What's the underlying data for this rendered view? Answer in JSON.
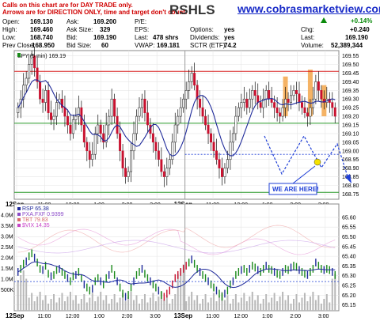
{
  "notices": {
    "line1": "Calls on this chart are for DAY TRADE only.",
    "line2": "Arrows are for DIRECTION ONLY, time and target don't count."
  },
  "site": "www.cobrasmarketview.com",
  "ticker": "RSHLS",
  "quote": {
    "open_label": "Open:",
    "open": "169.130",
    "high_label": "High:",
    "high": "169.460",
    "low_label": "Low:",
    "low": "168.740",
    "prev_label": "Prev Close:",
    "prev": "168.950",
    "ask_label": "Ask:",
    "ask": "169.200",
    "asksize_label": "Ask Size:",
    "asksize": "329",
    "bid_label": "Bid:",
    "bid": "169.190",
    "bidsize_label": "Bid Size:",
    "bidsize": "60",
    "pe_label": "P/E:",
    "pe": "",
    "eps_label": "EPS:",
    "eps": "",
    "last_label": "Last:",
    "last": "478 shrs",
    "vwap_label": "VWAP:",
    "vwap": "169.181",
    "options_label": "Options:",
    "options": "yes",
    "dividends_label": "Dividends:",
    "dividends": "yes",
    "splits_label": "Splits:",
    "splits": "yes",
    "sctr_label": "SCTR (ETF):",
    "sctr": "74.2",
    "chg_pct": "+0.14%",
    "chg_label": "Chg:",
    "chg": "+0.240",
    "last2_label": "Last:",
    "last2": "169.190",
    "volume_label": "Volume:",
    "volume": "52,389,344"
  },
  "price_legend": "SPY (5 min) 169.19",
  "callout": "WE ARE HERE!",
  "colors": {
    "up": "#1a8a1a",
    "down": "#c8102e",
    "ma": "#1f2a9a",
    "resistance": "#d81e1e",
    "support": "#2a9a2a",
    "arrow": "#1f3fd6",
    "highlight": "#f3a64a"
  },
  "chart_data": [
    {
      "type": "candlestick",
      "title": "SPY (5 min) 169.19",
      "x_ticks": [
        "12Sep",
        "11:00",
        "12:00",
        "1:00",
        "2:00",
        "3:00",
        "13Sep",
        "11:00",
        "12:00",
        "1:00",
        "2:00",
        "3:00"
      ],
      "y_ticks": [
        169.55,
        169.5,
        169.45,
        169.4,
        169.35,
        169.3,
        169.25,
        169.2,
        169.15,
        169.1,
        169.05,
        169.0,
        168.95,
        168.9,
        168.85,
        168.8,
        168.75
      ],
      "ylim": [
        168.72,
        169.58
      ],
      "resistance": 169.46,
      "support": 169.16,
      "last": 169.19,
      "closes": [
        169.25,
        169.3,
        169.38,
        169.42,
        169.5,
        169.55,
        169.48,
        169.4,
        169.3,
        169.28,
        169.35,
        169.22,
        169.18,
        169.2,
        169.28,
        169.3,
        169.25,
        169.2,
        169.15,
        169.1,
        169.18,
        169.2,
        169.25,
        169.15,
        169.05,
        169.0,
        168.95,
        168.98,
        169.1,
        169.15,
        169.1,
        169.05,
        169.15,
        169.2,
        169.3,
        169.2,
        169.1,
        169.0,
        168.9,
        168.85,
        168.88,
        169.0,
        169.1,
        169.2,
        169.25,
        169.3,
        169.22,
        169.15,
        169.1,
        169.05,
        169.0,
        168.95,
        168.88,
        168.85,
        168.9,
        168.95,
        169.05,
        169.15,
        169.2,
        169.25,
        169.3,
        169.35,
        169.4,
        169.45,
        169.38,
        169.3,
        169.25,
        169.2,
        169.15,
        169.1,
        169.05,
        169.0,
        168.95,
        168.9,
        168.85,
        168.9,
        168.95,
        169.05,
        169.1,
        169.2,
        169.25,
        169.28,
        169.3,
        169.25,
        169.3,
        169.35,
        169.32,
        169.28,
        169.25,
        169.3,
        169.35,
        169.3,
        169.28,
        169.25,
        169.22,
        169.2,
        169.25,
        169.3,
        169.28,
        169.32,
        169.35,
        169.33,
        169.28,
        169.25,
        169.22,
        169.2,
        169.25,
        169.3,
        169.4,
        169.35,
        169.3,
        169.28,
        169.3,
        169.28,
        169.25,
        169.2
      ]
    },
    {
      "type": "line",
      "title": "RSP",
      "series": [
        {
          "name": "RSP",
          "value": "65.38"
        },
        {
          "name": "PXA.FXF",
          "value": "0.9399"
        },
        {
          "name": "TBT",
          "value": "79.83"
        },
        {
          "name": "$VIX",
          "value": "14.35"
        }
      ],
      "x_ticks": [
        "12Sep",
        "11:00",
        "12:00",
        "1:00",
        "2:00",
        "3:00",
        "13Sep",
        "11:00",
        "12:00",
        "1:00",
        "2:00",
        "3:00"
      ],
      "right_ticks": [
        "65.60",
        "65.55",
        "65.50",
        "65.45",
        "65.40",
        "65.35",
        "65.30",
        "65.25",
        "65.20",
        "65.15"
      ],
      "left_ticks": [
        "4.0M",
        "3.5M",
        "3.0M",
        "2.5M",
        "2.0M",
        "1.5M",
        "1.0M",
        "500K"
      ],
      "ylim": [
        65.12,
        65.62
      ]
    }
  ]
}
